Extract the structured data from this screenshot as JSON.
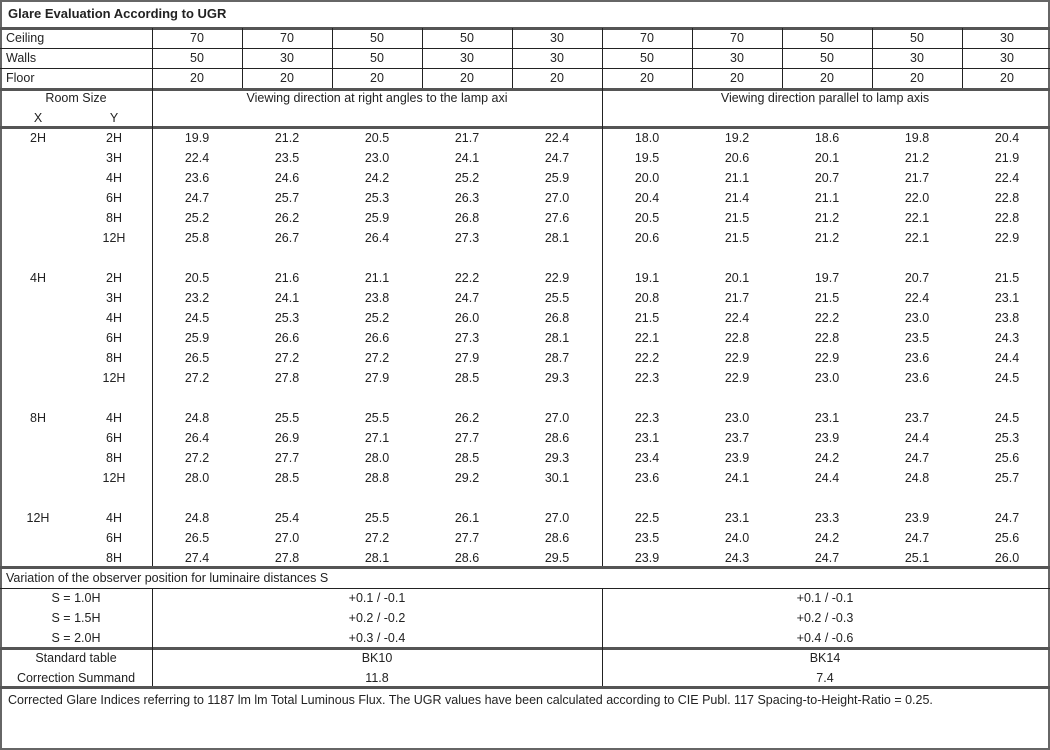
{
  "title": "Glare Evaluation According to UGR",
  "reflectances": [
    {
      "label": "Ceiling",
      "values": [
        "70",
        "70",
        "50",
        "50",
        "30",
        "70",
        "70",
        "50",
        "50",
        "30"
      ]
    },
    {
      "label": "Walls",
      "values": [
        "50",
        "30",
        "50",
        "30",
        "30",
        "50",
        "30",
        "50",
        "30",
        "30"
      ]
    },
    {
      "label": "Floor",
      "values": [
        "20",
        "20",
        "20",
        "20",
        "20",
        "20",
        "20",
        "20",
        "20",
        "20"
      ]
    }
  ],
  "header": {
    "room_size": "Room Size",
    "x": "X",
    "y": "Y",
    "direction_perpendicular": "Viewing direction at right angles to the lamp axi",
    "direction_parallel": "Viewing direction parallel to lamp axis"
  },
  "groups": [
    {
      "x": "2H",
      "rows": [
        {
          "y": "2H",
          "values": [
            "19.9",
            "21.2",
            "20.5",
            "21.7",
            "22.4",
            "18.0",
            "19.2",
            "18.6",
            "19.8",
            "20.4"
          ]
        },
        {
          "y": "3H",
          "values": [
            "22.4",
            "23.5",
            "23.0",
            "24.1",
            "24.7",
            "19.5",
            "20.6",
            "20.1",
            "21.2",
            "21.9"
          ]
        },
        {
          "y": "4H",
          "values": [
            "23.6",
            "24.6",
            "24.2",
            "25.2",
            "25.9",
            "20.0",
            "21.1",
            "20.7",
            "21.7",
            "22.4"
          ]
        },
        {
          "y": "6H",
          "values": [
            "24.7",
            "25.7",
            "25.3",
            "26.3",
            "27.0",
            "20.4",
            "21.4",
            "21.1",
            "22.0",
            "22.8"
          ]
        },
        {
          "y": "8H",
          "values": [
            "25.2",
            "26.2",
            "25.9",
            "26.8",
            "27.6",
            "20.5",
            "21.5",
            "21.2",
            "22.1",
            "22.8"
          ]
        },
        {
          "y": "12H",
          "values": [
            "25.8",
            "26.7",
            "26.4",
            "27.3",
            "28.1",
            "20.6",
            "21.5",
            "21.2",
            "22.1",
            "22.9"
          ]
        }
      ]
    },
    {
      "x": "4H",
      "rows": [
        {
          "y": "2H",
          "values": [
            "20.5",
            "21.6",
            "21.1",
            "22.2",
            "22.9",
            "19.1",
            "20.1",
            "19.7",
            "20.7",
            "21.5"
          ]
        },
        {
          "y": "3H",
          "values": [
            "23.2",
            "24.1",
            "23.8",
            "24.7",
            "25.5",
            "20.8",
            "21.7",
            "21.5",
            "22.4",
            "23.1"
          ]
        },
        {
          "y": "4H",
          "values": [
            "24.5",
            "25.3",
            "25.2",
            "26.0",
            "26.8",
            "21.5",
            "22.4",
            "22.2",
            "23.0",
            "23.8"
          ]
        },
        {
          "y": "6H",
          "values": [
            "25.9",
            "26.6",
            "26.6",
            "27.3",
            "28.1",
            "22.1",
            "22.8",
            "22.8",
            "23.5",
            "24.3"
          ]
        },
        {
          "y": "8H",
          "values": [
            "26.5",
            "27.2",
            "27.2",
            "27.9",
            "28.7",
            "22.2",
            "22.9",
            "22.9",
            "23.6",
            "24.4"
          ]
        },
        {
          "y": "12H",
          "values": [
            "27.2",
            "27.8",
            "27.9",
            "28.5",
            "29.3",
            "22.3",
            "22.9",
            "23.0",
            "23.6",
            "24.5"
          ]
        }
      ]
    },
    {
      "x": "8H",
      "rows": [
        {
          "y": "4H",
          "values": [
            "24.8",
            "25.5",
            "25.5",
            "26.2",
            "27.0",
            "22.3",
            "23.0",
            "23.1",
            "23.7",
            "24.5"
          ]
        },
        {
          "y": "6H",
          "values": [
            "26.4",
            "26.9",
            "27.1",
            "27.7",
            "28.6",
            "23.1",
            "23.7",
            "23.9",
            "24.4",
            "25.3"
          ]
        },
        {
          "y": "8H",
          "values": [
            "27.2",
            "27.7",
            "28.0",
            "28.5",
            "29.3",
            "23.4",
            "23.9",
            "24.2",
            "24.7",
            "25.6"
          ]
        },
        {
          "y": "12H",
          "values": [
            "28.0",
            "28.5",
            "28.8",
            "29.2",
            "30.1",
            "23.6",
            "24.1",
            "24.4",
            "24.8",
            "25.7"
          ]
        }
      ]
    },
    {
      "x": "12H",
      "rows": [
        {
          "y": "4H",
          "values": [
            "24.8",
            "25.4",
            "25.5",
            "26.1",
            "27.0",
            "22.5",
            "23.1",
            "23.3",
            "23.9",
            "24.7"
          ]
        },
        {
          "y": "6H",
          "values": [
            "26.5",
            "27.0",
            "27.2",
            "27.7",
            "28.6",
            "23.5",
            "24.0",
            "24.2",
            "24.7",
            "25.6"
          ]
        },
        {
          "y": "8H",
          "values": [
            "27.4",
            "27.8",
            "28.1",
            "28.6",
            "29.5",
            "23.9",
            "24.3",
            "24.7",
            "25.1",
            "26.0"
          ]
        }
      ]
    }
  ],
  "variation": {
    "label": "Variation of the observer position for luminaire distances S",
    "rows": [
      {
        "s": "S = 1.0H",
        "perpendicular": "+0.1 / -0.1",
        "parallel": "+0.1 / -0.1"
      },
      {
        "s": "S = 1.5H",
        "perpendicular": "+0.2 / -0.2",
        "parallel": "+0.2 / -0.3"
      },
      {
        "s": "S = 2.0H",
        "perpendicular": "+0.3 / -0.4",
        "parallel": "+0.4 / -0.6"
      }
    ]
  },
  "standard": {
    "table_label": "Standard table",
    "table_perpendicular": "BK10",
    "table_parallel": "BK14",
    "correction_label": "Correction Summand",
    "correction_perpendicular": "11.8",
    "correction_parallel": "7.4"
  },
  "footer": "Corrected Glare Indices referring to 1187 lm lm Total Luminous Flux. The UGR values have been calculated according to CIE Publ. 117    Spacing-to-Height-Ratio = 0.25."
}
